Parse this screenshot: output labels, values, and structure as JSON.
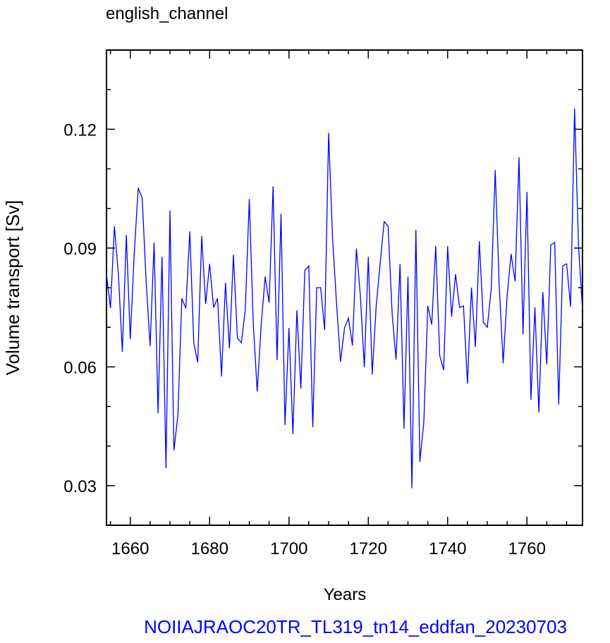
{
  "chart_data": {
    "type": "line",
    "title": "english_channel",
    "x_label": "Years",
    "y_label": "Volume transport [Sv]",
    "footer": "NOIIAJRAOC20TR_TL319_tn14_eddfan_20230703",
    "x": [
      1654,
      1655,
      1656,
      1657,
      1658,
      1659,
      1660,
      1661,
      1662,
      1663,
      1664,
      1665,
      1666,
      1667,
      1668,
      1669,
      1670,
      1671,
      1672,
      1673,
      1674,
      1675,
      1676,
      1677,
      1678,
      1679,
      1680,
      1681,
      1682,
      1683,
      1684,
      1685,
      1686,
      1687,
      1688,
      1689,
      1690,
      1691,
      1692,
      1693,
      1694,
      1695,
      1696,
      1697,
      1698,
      1699,
      1700,
      1701,
      1702,
      1703,
      1704,
      1705,
      1706,
      1707,
      1708,
      1709,
      1710,
      1711,
      1712,
      1713,
      1714,
      1715,
      1716,
      1717,
      1718,
      1719,
      1720,
      1721,
      1722,
      1723,
      1724,
      1725,
      1726,
      1727,
      1728,
      1729,
      1730,
      1731,
      1732,
      1733,
      1734,
      1735,
      1736,
      1737,
      1738,
      1739,
      1740,
      1741,
      1742,
      1743,
      1744,
      1745,
      1746,
      1747,
      1748,
      1749,
      1750,
      1751,
      1752,
      1753,
      1754,
      1755,
      1756,
      1757,
      1758,
      1759,
      1760,
      1761,
      1762,
      1763,
      1764,
      1765,
      1766,
      1767,
      1768,
      1769,
      1770,
      1771,
      1772,
      1773,
      1774
    ],
    "series": [
      {
        "color": "#0000ff",
        "values": [
          0.0834,
          0.0748,
          0.0955,
          0.0834,
          0.0638,
          0.0933,
          0.067,
          0.0887,
          0.1052,
          0.1026,
          0.0816,
          0.0652,
          0.0914,
          0.0483,
          0.0878,
          0.0344,
          0.0995,
          0.0389,
          0.0478,
          0.0773,
          0.0748,
          0.0942,
          0.0661,
          0.0611,
          0.093,
          0.0759,
          0.086,
          0.075,
          0.0773,
          0.0576,
          0.0812,
          0.0647,
          0.0883,
          0.0673,
          0.0661,
          0.0745,
          0.1024,
          0.0709,
          0.0538,
          0.0706,
          0.0828,
          0.0762,
          0.1056,
          0.0617,
          0.0987,
          0.0453,
          0.0698,
          0.043,
          0.0743,
          0.0545,
          0.0844,
          0.0855,
          0.0448,
          0.08,
          0.08,
          0.0693,
          0.1191,
          0.0923,
          0.0759,
          0.0613,
          0.0698,
          0.0723,
          0.0654,
          0.0899,
          0.078,
          0.0599,
          0.0878,
          0.0581,
          0.0755,
          0.0862,
          0.0967,
          0.0955,
          0.0736,
          0.0618,
          0.086,
          0.0444,
          0.0828,
          0.0293,
          0.0946,
          0.036,
          0.046,
          0.0754,
          0.0707,
          0.0905,
          0.0629,
          0.0592,
          0.0905,
          0.0727,
          0.0834,
          0.075,
          0.0754,
          0.0558,
          0.08,
          0.065,
          0.0917,
          0.0713,
          0.07,
          0.0798,
          0.1097,
          0.0807,
          0.0609,
          0.078,
          0.0885,
          0.0816,
          0.1129,
          0.0682,
          0.1042,
          0.0517,
          0.075,
          0.0485,
          0.0789,
          0.0606,
          0.0908,
          0.0914,
          0.0505,
          0.0855,
          0.086,
          0.0752,
          0.1252,
          0.0905,
          0.0745
        ]
      }
    ],
    "xlim": [
      1654,
      1774
    ],
    "ylim": [
      0.02,
      0.14
    ],
    "xticks": [
      1660,
      1680,
      1700,
      1720,
      1740,
      1760
    ],
    "yticks": [
      0.03,
      0.06,
      0.09,
      0.12
    ],
    "xminorticks": [
      1655,
      1665,
      1670,
      1675,
      1685,
      1690,
      1695,
      1705,
      1710,
      1715,
      1725,
      1730,
      1735,
      1745,
      1750,
      1755,
      1765,
      1770
    ],
    "yminorticks": [
      0.02,
      0.04,
      0.05,
      0.07,
      0.08,
      0.1,
      0.11,
      0.13,
      0.14
    ]
  }
}
